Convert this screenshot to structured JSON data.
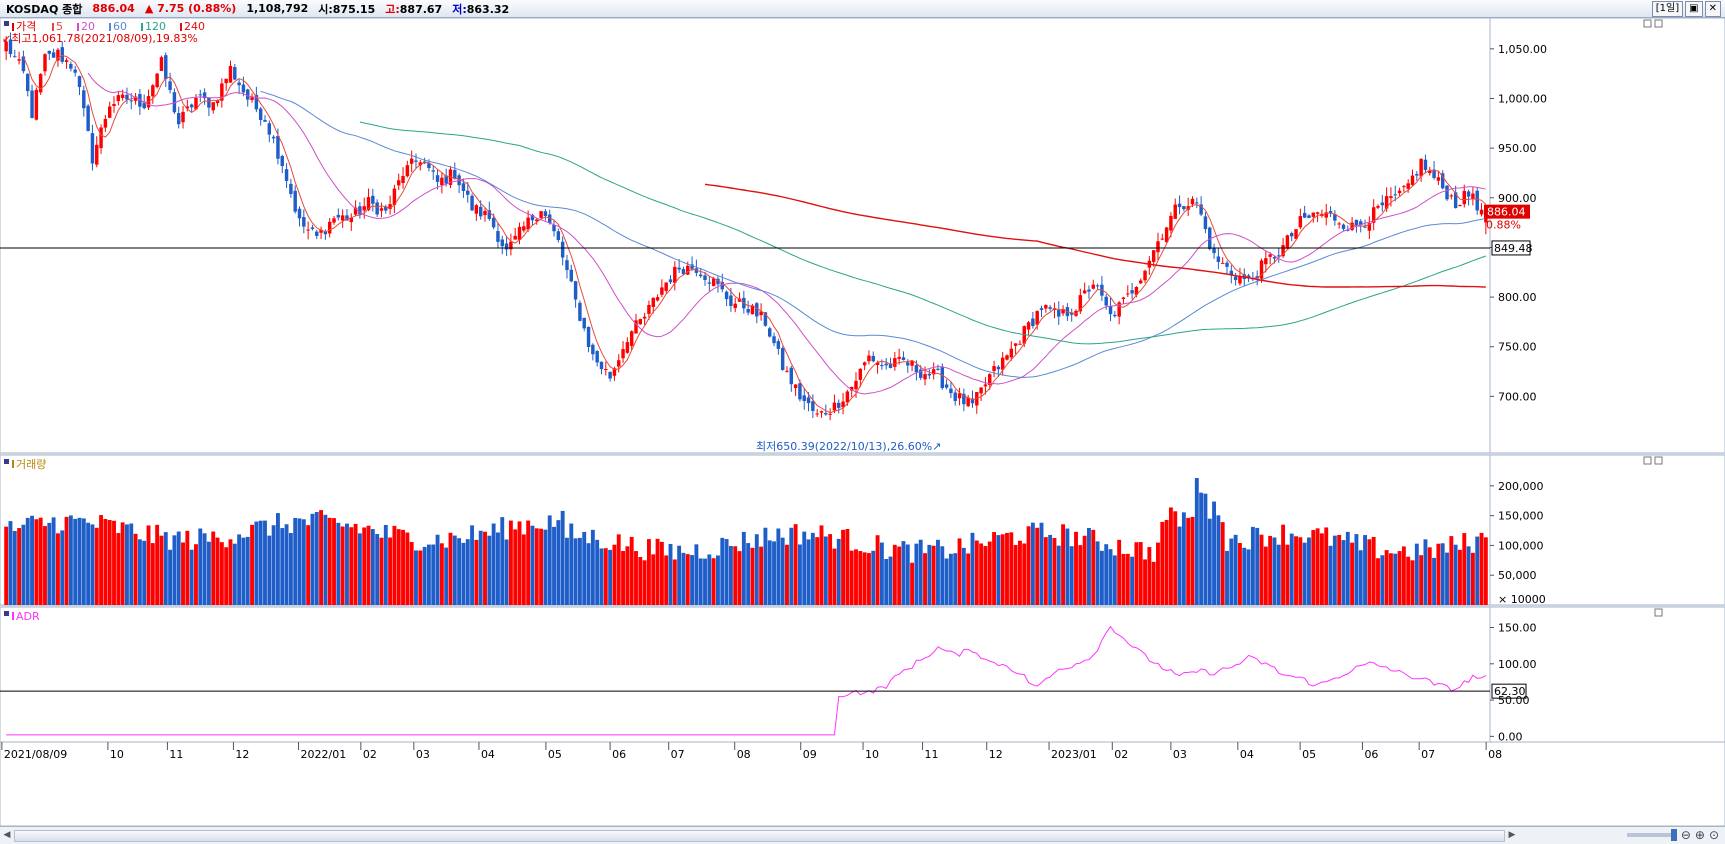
{
  "header": {
    "symbol": "KOSDAQ 종합",
    "price": "886.04",
    "change": "▲ 7.75 (0.88%)",
    "volume": "1,108,792",
    "open_label": "시:",
    "open": "875.15",
    "high_label": "고:",
    "high": "887.67",
    "low_label": "저:",
    "low": "863.32",
    "period_button": "[1일]"
  },
  "colors": {
    "up": "#ff0000",
    "down": "#1f5ec8",
    "ma5": "#e84a3a",
    "ma20": "#d04ec8",
    "ma60": "#5b88d6",
    "ma120": "#2aa48a",
    "ma240": "#e01010",
    "adr": "#ff33ff",
    "panel_bg": "#ffffff",
    "grid": "#e6ebf2"
  },
  "chart_data": [
    {
      "type": "candlestick",
      "panel": "price",
      "legend": [
        {
          "name": "가격",
          "color": "#e00000"
        },
        {
          "name": "5",
          "color": "#e84a3a"
        },
        {
          "name": "20",
          "color": "#d04ec8"
        },
        {
          "name": "60",
          "color": "#5b88d6"
        },
        {
          "name": "120",
          "color": "#2aa48a"
        },
        {
          "name": "240",
          "color": "#e01010"
        }
      ],
      "y_ticks": [
        700,
        750,
        800,
        850,
        900,
        950,
        1000,
        1050
      ],
      "y_tick_labels": [
        "700.00",
        "750.00",
        "800.00",
        "",
        "900.00",
        "950.00",
        "1,000.00",
        "1,050.00"
      ],
      "ylim": [
        645,
        1075
      ],
      "x_months": [
        "2021/08/09",
        "10",
        "11",
        "12",
        "2022/01",
        "02",
        "03",
        "04",
        "05",
        "06",
        "07",
        "08",
        "09",
        "10",
        "11",
        "12",
        "2023/01",
        "02",
        "03",
        "04",
        "05",
        "06",
        "07",
        "08"
      ],
      "close_anchors": [
        [
          0,
          1055
        ],
        [
          4,
          1025
        ],
        [
          6,
          985
        ],
        [
          9,
          1040
        ],
        [
          12,
          1045
        ],
        [
          16,
          1030
        ],
        [
          20,
          940
        ],
        [
          24,
          995
        ],
        [
          28,
          1000
        ],
        [
          32,
          995
        ],
        [
          36,
          1035
        ],
        [
          40,
          975
        ],
        [
          44,
          1000
        ],
        [
          48,
          995
        ],
        [
          52,
          1030
        ],
        [
          56,
          1000
        ],
        [
          60,
          980
        ],
        [
          64,
          935
        ],
        [
          68,
          875
        ],
        [
          72,
          860
        ],
        [
          76,
          880
        ],
        [
          80,
          880
        ],
        [
          84,
          895
        ],
        [
          88,
          885
        ],
        [
          92,
          925
        ],
        [
          96,
          940
        ],
        [
          100,
          915
        ],
        [
          104,
          925
        ],
        [
          108,
          890
        ],
        [
          112,
          880
        ],
        [
          116,
          845
        ],
        [
          120,
          870
        ],
        [
          124,
          890
        ],
        [
          128,
          855
        ],
        [
          132,
          795
        ],
        [
          136,
          740
        ],
        [
          140,
          720
        ],
        [
          144,
          760
        ],
        [
          148,
          780
        ],
        [
          152,
          810
        ],
        [
          156,
          830
        ],
        [
          160,
          830
        ],
        [
          164,
          815
        ],
        [
          168,
          795
        ],
        [
          172,
          790
        ],
        [
          176,
          775
        ],
        [
          180,
          730
        ],
        [
          184,
          700
        ],
        [
          188,
          680
        ],
        [
          192,
          690
        ],
        [
          196,
          710
        ],
        [
          200,
          740
        ],
        [
          204,
          730
        ],
        [
          208,
          735
        ],
        [
          212,
          725
        ],
        [
          216,
          720
        ],
        [
          220,
          700
        ],
        [
          224,
          690
        ],
        [
          228,
          720
        ],
        [
          232,
          740
        ],
        [
          236,
          765
        ],
        [
          240,
          790
        ],
        [
          244,
          780
        ],
        [
          248,
          790
        ],
        [
          252,
          815
        ],
        [
          256,
          780
        ],
        [
          260,
          800
        ],
        [
          264,
          830
        ],
        [
          268,
          865
        ],
        [
          272,
          895
        ],
        [
          276,
          895
        ],
        [
          280,
          840
        ],
        [
          284,
          825
        ],
        [
          288,
          815
        ],
        [
          292,
          835
        ],
        [
          296,
          850
        ],
        [
          300,
          875
        ],
        [
          304,
          885
        ],
        [
          308,
          880
        ],
        [
          312,
          870
        ],
        [
          316,
          880
        ],
        [
          320,
          895
        ],
        [
          324,
          905
        ],
        [
          328,
          935
        ],
        [
          332,
          915
        ],
        [
          336,
          895
        ],
        [
          340,
          905
        ],
        [
          342,
          882
        ],
        [
          343,
          886
        ]
      ],
      "annotations": [
        {
          "text": "↙최고1,061.78(2021/08/09),19.83%",
          "value": 1061.78,
          "date": "2021/08/09"
        },
        {
          "text": "최저650.39(2022/10/13),26.60%↗",
          "value": 650.39,
          "date": "2022/10/13"
        }
      ],
      "hline": 849.48,
      "hline_label": "849.48",
      "last_price_label": "886.04",
      "last_change_label": "0.88%"
    },
    {
      "type": "bar",
      "panel": "volume",
      "legend": [
        {
          "name": "거래량",
          "color": "#b8860b"
        }
      ],
      "y_ticks": [
        50000,
        100000,
        150000,
        200000
      ],
      "y_tick_labels": [
        "50,000",
        "100,000",
        "150,000",
        "200,000"
      ],
      "unit_label": "× 10000",
      "ylim": [
        0,
        235000
      ]
    },
    {
      "type": "line",
      "panel": "ADR",
      "legend": [
        {
          "name": "ADR",
          "color": "#ff33ff"
        }
      ],
      "y_ticks": [
        0,
        50,
        100,
        150
      ],
      "y_tick_labels": [
        "0.00",
        "50.00",
        "100.00",
        "150.00"
      ],
      "ylim": [
        -5,
        170
      ],
      "anchors": [
        [
          0,
          2
        ],
        [
          192,
          2
        ],
        [
          193,
          55
        ],
        [
          196,
          62
        ],
        [
          200,
          60
        ],
        [
          204,
          70
        ],
        [
          208,
          90
        ],
        [
          212,
          105
        ],
        [
          216,
          122
        ],
        [
          220,
          112
        ],
        [
          224,
          120
        ],
        [
          228,
          102
        ],
        [
          232,
          98
        ],
        [
          236,
          82
        ],
        [
          238,
          70
        ],
        [
          240,
          72
        ],
        [
          244,
          92
        ],
        [
          248,
          100
        ],
        [
          252,
          112
        ],
        [
          256,
          152
        ],
        [
          260,
          130
        ],
        [
          264,
          110
        ],
        [
          268,
          95
        ],
        [
          272,
          82
        ],
        [
          276,
          90
        ],
        [
          280,
          88
        ],
        [
          284,
          95
        ],
        [
          288,
          108
        ],
        [
          292,
          100
        ],
        [
          296,
          85
        ],
        [
          300,
          80
        ],
        [
          304,
          70
        ],
        [
          308,
          80
        ],
        [
          312,
          92
        ],
        [
          316,
          100
        ],
        [
          320,
          95
        ],
        [
          324,
          85
        ],
        [
          328,
          80
        ],
        [
          332,
          70
        ],
        [
          336,
          65
        ],
        [
          340,
          82
        ],
        [
          343,
          80
        ]
      ],
      "hline": 62.3,
      "hline_label": "62.30"
    }
  ]
}
